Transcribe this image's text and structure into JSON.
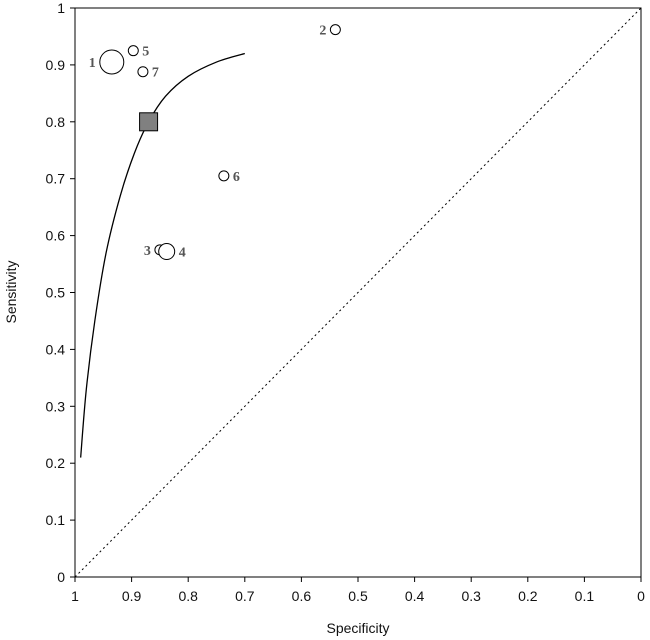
{
  "chart_data": {
    "type": "scatter",
    "title": "",
    "xlabel": "Specificity",
    "ylabel": "Sensitivity",
    "xlim": [
      1,
      0
    ],
    "ylim": [
      0,
      1
    ],
    "x_axis_reversed": true,
    "xticks": [
      "1",
      "0.9",
      "0.8",
      "0.7",
      "0.6",
      "0.5",
      "0.4",
      "0.3",
      "0.2",
      "0.1",
      "0"
    ],
    "yticks": [
      "0",
      "0.1",
      "0.2",
      "0.3",
      "0.4",
      "0.5",
      "0.6",
      "0.7",
      "0.8",
      "0.9",
      "1"
    ],
    "grid": false,
    "legend": "none",
    "studies": [
      {
        "label": "1",
        "specificity": 0.935,
        "sensitivity": 0.905,
        "size": "large"
      },
      {
        "label": "2",
        "specificity": 0.54,
        "sensitivity": 0.962,
        "size": "small"
      },
      {
        "label": "3",
        "specificity": 0.85,
        "sensitivity": 0.575,
        "size": "small"
      },
      {
        "label": "4",
        "specificity": 0.838,
        "sensitivity": 0.572,
        "size": "medium"
      },
      {
        "label": "5",
        "specificity": 0.897,
        "sensitivity": 0.925,
        "size": "small"
      },
      {
        "label": "6",
        "specificity": 0.737,
        "sensitivity": 0.705,
        "size": "small"
      },
      {
        "label": "7",
        "specificity": 0.88,
        "sensitivity": 0.888,
        "size": "small"
      }
    ],
    "summary_point": {
      "specificity": 0.87,
      "sensitivity": 0.8,
      "marker": "filled-square",
      "color": "#808080"
    },
    "sroc_curve": [
      {
        "specificity": 0.99,
        "sensitivity": 0.21
      },
      {
        "specificity": 0.98,
        "sensitivity": 0.33
      },
      {
        "specificity": 0.965,
        "sensitivity": 0.45
      },
      {
        "specificity": 0.945,
        "sensitivity": 0.57
      },
      {
        "specificity": 0.92,
        "sensitivity": 0.67
      },
      {
        "specificity": 0.895,
        "sensitivity": 0.745
      },
      {
        "specificity": 0.87,
        "sensitivity": 0.8
      },
      {
        "specificity": 0.84,
        "sensitivity": 0.845
      },
      {
        "specificity": 0.8,
        "sensitivity": 0.88
      },
      {
        "specificity": 0.75,
        "sensitivity": 0.905
      },
      {
        "specificity": 0.7,
        "sensitivity": 0.92
      }
    ],
    "reference_line": {
      "from": [
        1,
        0
      ],
      "to": [
        0,
        1
      ],
      "style": "dotted"
    }
  }
}
